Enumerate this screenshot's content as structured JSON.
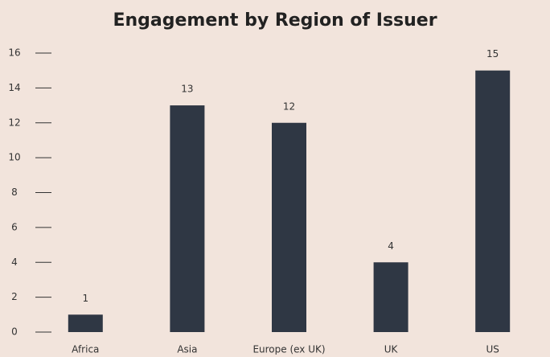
{
  "chart_data": {
    "type": "bar",
    "title": "Engagement by Region of Issuer",
    "categories": [
      "Africa",
      "Asia",
      "Europe (ex UK)",
      "UK",
      "US"
    ],
    "values": [
      1,
      13,
      12,
      4,
      15
    ],
    "color": "#2f3744",
    "ylim": [
      0,
      16
    ],
    "yticks": [
      0,
      2,
      4,
      6,
      8,
      10,
      12,
      14,
      16
    ]
  }
}
